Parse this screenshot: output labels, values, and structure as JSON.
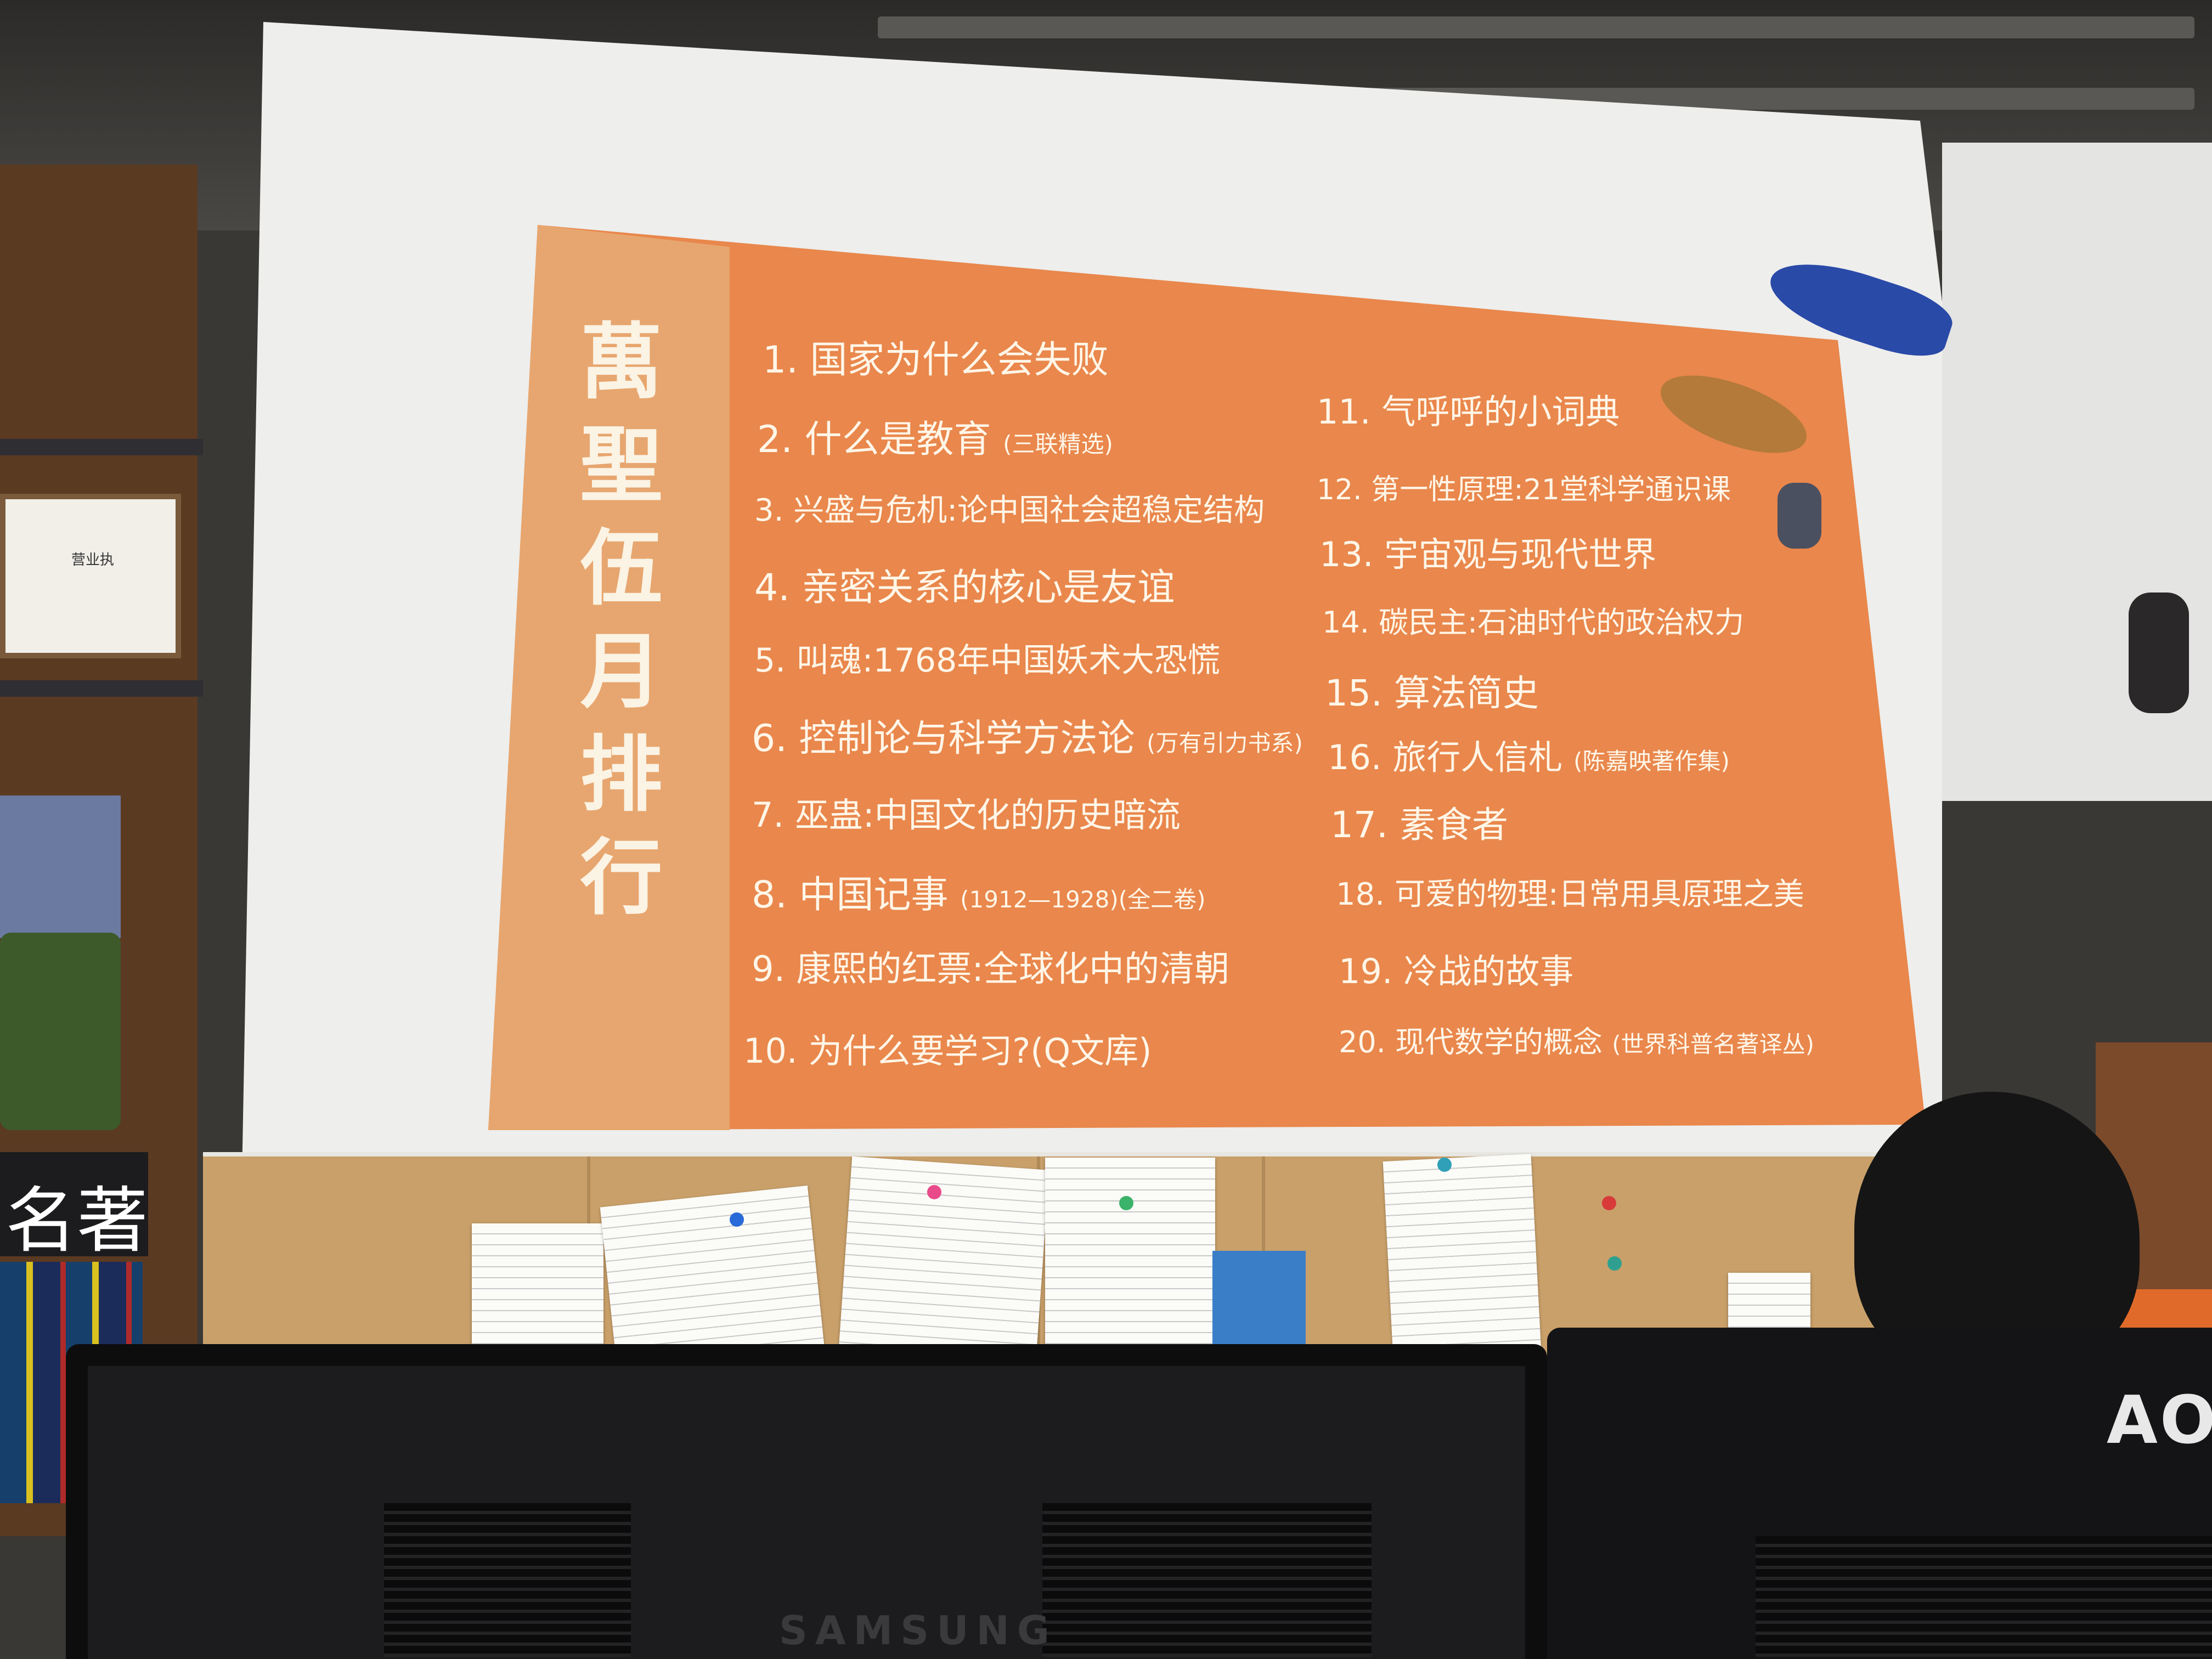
{
  "board": {
    "title": "萬聖伍月排行",
    "left_items": [
      {
        "num": "1.",
        "text": "国家为什么会失败",
        "note": ""
      },
      {
        "num": "2.",
        "text": "什么是教育",
        "note": "(三联精选)"
      },
      {
        "num": "3.",
        "text": "兴盛与危机:论中国社会超稳定结构",
        "note": ""
      },
      {
        "num": "4.",
        "text": "亲密关系的核心是友谊",
        "note": ""
      },
      {
        "num": "5.",
        "text": "叫魂:1768年中国妖术大恐慌",
        "note": ""
      },
      {
        "num": "6.",
        "text": "控制论与科学方法论",
        "note": "(万有引力书系)"
      },
      {
        "num": "7.",
        "text": "巫蛊:中国文化的历史暗流",
        "note": ""
      },
      {
        "num": "8.",
        "text": "中国记事",
        "note": "(1912—1928)(全二卷)"
      },
      {
        "num": "9.",
        "text": "康熙的红票:全球化中的清朝",
        "note": ""
      },
      {
        "num": "10.",
        "text": "为什么要学习?(Q文库)",
        "note": ""
      }
    ],
    "right_items": [
      {
        "num": "11.",
        "text": "气呼呼的小词典",
        "note": ""
      },
      {
        "num": "12.",
        "text": "第一性原理:21堂科学通识课",
        "note": ""
      },
      {
        "num": "13.",
        "text": "宇宙观与现代世界",
        "note": ""
      },
      {
        "num": "14.",
        "text": "碳民主:石油时代的政治权力",
        "note": ""
      },
      {
        "num": "15.",
        "text": "算法简史",
        "note": ""
      },
      {
        "num": "16.",
        "text": "旅行人信札",
        "note": "(陈嘉映著作集)"
      },
      {
        "num": "17.",
        "text": "素食者",
        "note": ""
      },
      {
        "num": "18.",
        "text": "可爱的物理:日常用具原理之美",
        "note": ""
      },
      {
        "num": "19.",
        "text": "冷战的故事",
        "note": ""
      },
      {
        "num": "20.",
        "text": "现代数学的概念",
        "note": "(世界科普名著译丛)"
      }
    ]
  },
  "shelf": {
    "license_title": "营业执",
    "sign_text": "名著"
  },
  "monitors": {
    "left_brand": "SAMSUNG",
    "right_brand": "AOC"
  },
  "colors": {
    "board": "#e9874c",
    "board_side": "#e7a66f",
    "chalk": "#fff6e8",
    "wall": "#eeeeec",
    "cork": "#c9a06a"
  }
}
